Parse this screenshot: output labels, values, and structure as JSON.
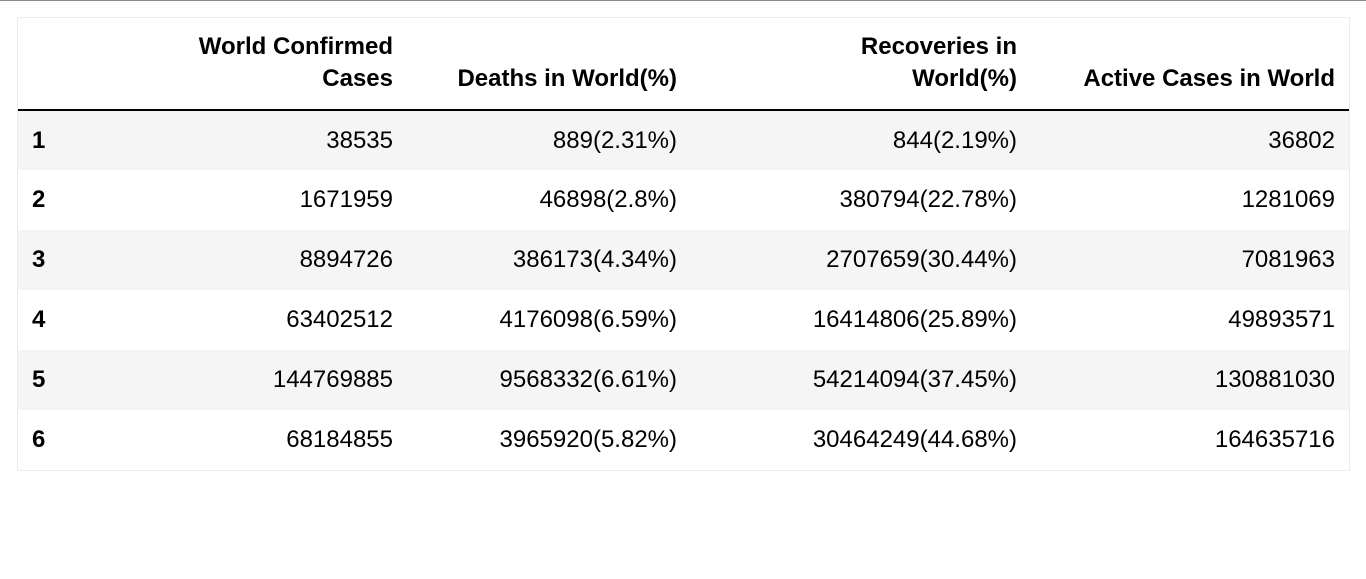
{
  "table": {
    "columns": [
      "",
      "World Confirmed Cases",
      "Deaths in World(%)",
      "Recoveries in World(%)",
      "Active Cases in World"
    ],
    "rows": [
      {
        "index": "1",
        "cells": [
          "38535",
          "889(2.31%)",
          "844(2.19%)",
          "36802"
        ]
      },
      {
        "index": "2",
        "cells": [
          "1671959",
          "46898(2.8%)",
          "380794(22.78%)",
          "1281069"
        ]
      },
      {
        "index": "3",
        "cells": [
          "8894726",
          "386173(4.34%)",
          "2707659(30.44%)",
          "7081963"
        ]
      },
      {
        "index": "4",
        "cells": [
          "63402512",
          "4176098(6.59%)",
          "16414806(25.89%)",
          "49893571"
        ]
      },
      {
        "index": "5",
        "cells": [
          "144769885",
          "9568332(6.61%)",
          "54214094(37.45%)",
          "130881030"
        ]
      },
      {
        "index": "6",
        "cells": [
          "68184855",
          "3965920(5.82%)",
          "30464249(44.68%)",
          "164635716"
        ]
      }
    ]
  }
}
